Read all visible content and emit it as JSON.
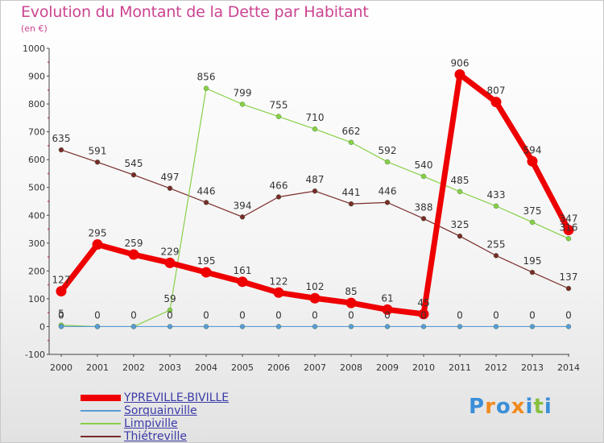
{
  "chart_data": {
    "type": "line",
    "title": "Evolution du Montant de la Dette par Habitant",
    "unit_label": "(en €)",
    "xlabel": "",
    "ylabel": "",
    "x": [
      "2000",
      "2001",
      "2002",
      "2003",
      "2004",
      "2005",
      "2006",
      "2007",
      "2008",
      "2009",
      "2010",
      "2011",
      "2012",
      "2013",
      "2014"
    ],
    "ylim": [
      -100,
      1000
    ],
    "yticks": [
      "-100",
      "0",
      "100",
      "200",
      "300",
      "400",
      "500",
      "600",
      "700",
      "800",
      "900",
      "1000"
    ],
    "series": [
      {
        "name": "YPREVILLE-BIVILLE",
        "color": "#ee0000",
        "values": [
          127,
          295,
          259,
          229,
          195,
          161,
          122,
          102,
          85,
          61,
          45,
          906,
          807,
          594,
          347
        ],
        "labels": [
          "127",
          "295",
          "259",
          "229",
          "195",
          "161",
          "122",
          "102",
          "85",
          "61",
          "45",
          "906",
          "807",
          "594",
          "347"
        ]
      },
      {
        "name": "Sorquainville",
        "color": "#5b9bd5",
        "values": [
          0,
          0,
          0,
          0,
          0,
          0,
          0,
          0,
          0,
          0,
          0,
          0,
          0,
          0,
          0
        ],
        "labels": [
          "0",
          "0",
          "0",
          "0",
          "0",
          "0",
          "0",
          "0",
          "0",
          "0",
          "0",
          "0",
          "0",
          "0",
          "0"
        ]
      },
      {
        "name": "Limpiville",
        "color": "#88d048",
        "values": [
          5,
          0,
          0,
          59,
          856,
          799,
          755,
          710,
          662,
          592,
          540,
          485,
          433,
          375,
          316
        ],
        "labels": [
          "5",
          "",
          "",
          "59",
          "856",
          "799",
          "755",
          "710",
          "662",
          "592",
          "540",
          "485",
          "433",
          "375",
          "316"
        ]
      },
      {
        "name": "Thiétreville",
        "color": "#7a2a2a",
        "values": [
          635,
          591,
          545,
          497,
          446,
          394,
          466,
          487,
          441,
          446,
          388,
          325,
          255,
          195,
          137
        ],
        "labels": [
          "635",
          "591",
          "545",
          "497",
          "446",
          "394",
          "466",
          "487",
          "441",
          "446",
          "388",
          "325",
          "255",
          "195",
          "137"
        ]
      }
    ]
  },
  "legend": [
    "YPREVILLE-BIVILLE",
    "Sorquainville",
    "Limpiville",
    "Thiétreville"
  ],
  "logo": {
    "letters": [
      "P",
      "r",
      "o",
      "x",
      "i",
      "t",
      "i"
    ],
    "colors": [
      "#3a8fd8",
      "#f08a1e",
      "#3a8fd8",
      "#f08a1e",
      "#3a8fd8",
      "#88c040",
      "#3a8fd8"
    ]
  }
}
